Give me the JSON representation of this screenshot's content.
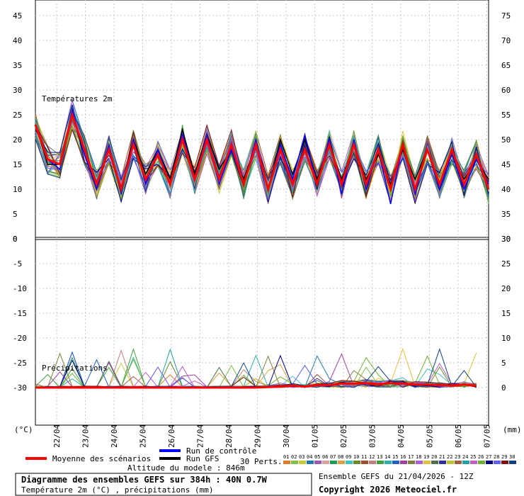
{
  "chart_data": [
    {
      "type": "line",
      "title": "Températures 2m",
      "y_left_range": [
        0,
        45
      ],
      "y_left_ticks": [
        "45",
        "40",
        "35",
        "30",
        "25",
        "20",
        "15",
        "10",
        "5",
        "0"
      ],
      "y_right_ticks": [
        "75",
        "70",
        "65",
        "60",
        "55",
        "50",
        "45",
        "40",
        "35",
        "30"
      ],
      "mean_series": [
        23,
        16,
        15,
        25,
        18,
        11,
        18,
        10,
        19,
        12,
        17,
        11,
        20,
        12,
        20,
        12,
        19,
        11,
        19,
        10,
        18,
        11,
        18,
        11,
        19,
        11,
        19,
        11,
        18,
        10,
        19,
        10,
        18,
        11,
        18,
        11,
        17,
        10
      ],
      "control_series": [
        23,
        16,
        14,
        26,
        17,
        10,
        19,
        9,
        20,
        11,
        18,
        11,
        21,
        12,
        21,
        11,
        18,
        11,
        20,
        10,
        19,
        12,
        21,
        11,
        20,
        9,
        20,
        10,
        18,
        7,
        19,
        9,
        18,
        10,
        17,
        10,
        16,
        11
      ],
      "gfs_series": [
        23,
        15,
        15,
        25,
        17,
        10,
        18,
        10,
        20,
        13,
        18,
        12,
        22,
        13,
        21,
        14,
        18,
        12,
        19,
        10,
        20,
        13,
        20,
        12,
        19,
        12,
        19,
        12,
        17,
        11,
        18,
        12,
        18,
        11,
        17,
        12,
        16,
        12
      ]
    },
    {
      "type": "line",
      "title": "Précipitations",
      "y_left_ticks": [
        "-5",
        "-10",
        "-15",
        "-20",
        "-25",
        "-30"
      ],
      "y_right_ticks": [
        "25",
        "20",
        "15",
        "10",
        "5",
        "0"
      ],
      "mean_series": [
        0,
        0,
        0,
        0,
        0,
        0,
        0,
        0,
        0,
        0,
        0,
        0,
        0,
        0,
        0,
        0,
        0,
        0,
        0,
        0.1,
        0.2,
        0.4,
        0.2,
        0.5,
        0.5,
        0.8,
        0.8,
        0.9,
        0.7,
        0.9,
        0.8,
        0.6,
        0.6,
        0.5,
        0.4,
        0.6,
        0.4
      ]
    }
  ],
  "axis_units": {
    "left": "(°C)",
    "right": "(mm)"
  },
  "dates": [
    "22/04",
    "23/04",
    "24/04",
    "25/04",
    "26/04",
    "27/04",
    "28/04",
    "29/04",
    "30/04",
    "01/05",
    "02/05",
    "03/05",
    "04/05",
    "05/05",
    "06/05",
    "07/05"
  ],
  "legend": {
    "mean_label": "Moyenne des scénarios",
    "control_label": "Run de contrôle",
    "gfs_label": "Run GFS",
    "altitude": "Altitude du modele : 846m",
    "perts_label": "30 Perts.",
    "pert_numbers": [
      "01",
      "02",
      "03",
      "04",
      "05",
      "06",
      "07",
      "08",
      "09",
      "10",
      "11",
      "12",
      "13",
      "14",
      "15",
      "16",
      "17",
      "18",
      "19",
      "20",
      "21",
      "22",
      "23",
      "24",
      "25",
      "26",
      "27",
      "28",
      "29",
      "30"
    ],
    "pert_colors": [
      "#e07b2a",
      "#7fbf4f",
      "#c9c937",
      "#1f77b4",
      "#9b59b6",
      "#e0a0a0",
      "#1f9a5a",
      "#d9a040",
      "#40c0c0",
      "#6a8a2a",
      "#a05030",
      "#c08080",
      "#40a040",
      "#30b0b0",
      "#2060c0",
      "#a040a0",
      "#808040",
      "#b060d0",
      "#e0c040",
      "#507050",
      "#3030a0",
      "#c0c030",
      "#a06040",
      "#20a0a0",
      "#c060c0",
      "#70b030",
      "#000080",
      "#6060ff",
      "#801010",
      "#104080"
    ],
    "mean_color": "#ff0000",
    "control_color": "#0000ff",
    "gfs_color": "#000000"
  },
  "footer": {
    "title": "Diagramme des ensembles GEFS sur 384h : 40N 0.7W",
    "subtitle": "Température 2m (°C) , précipitations (mm)",
    "run_info": "Ensemble GEFS du 21/04/2026 - 12Z",
    "copyright": "Copyright 2026 Meteociel.fr"
  }
}
